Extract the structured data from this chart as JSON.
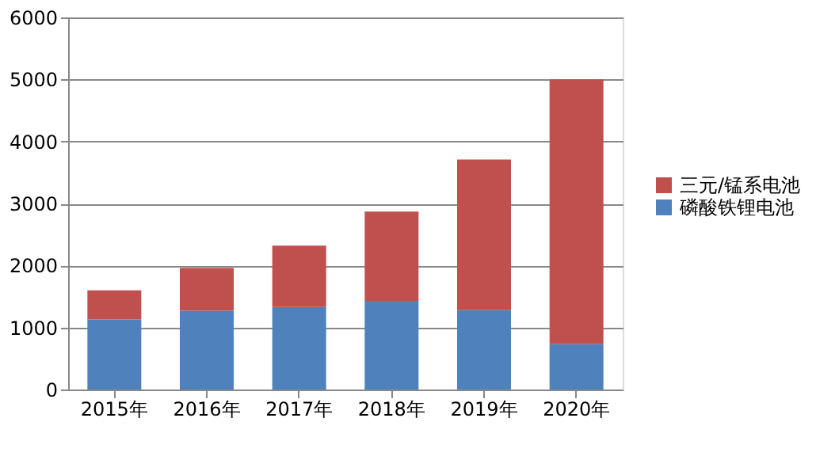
{
  "chart_data": {
    "type": "bar",
    "stacked": true,
    "categories": [
      "2015年",
      "2016年",
      "2017年",
      "2018年",
      "2019年",
      "2020年"
    ],
    "series": [
      {
        "name": "磷酸铁锂电池",
        "color": "#4f81bd",
        "values": [
          1130,
          1270,
          1330,
          1430,
          1280,
          730
        ]
      },
      {
        "name": "三元/锰系电池",
        "color": "#c0504d",
        "values": [
          470,
          690,
          990,
          1440,
          2430,
          4270
        ]
      }
    ],
    "ylim": [
      0,
      6000
    ],
    "yticks": [
      0,
      1000,
      2000,
      3000,
      4000,
      5000,
      6000
    ],
    "grid": "y",
    "legend": "right"
  }
}
